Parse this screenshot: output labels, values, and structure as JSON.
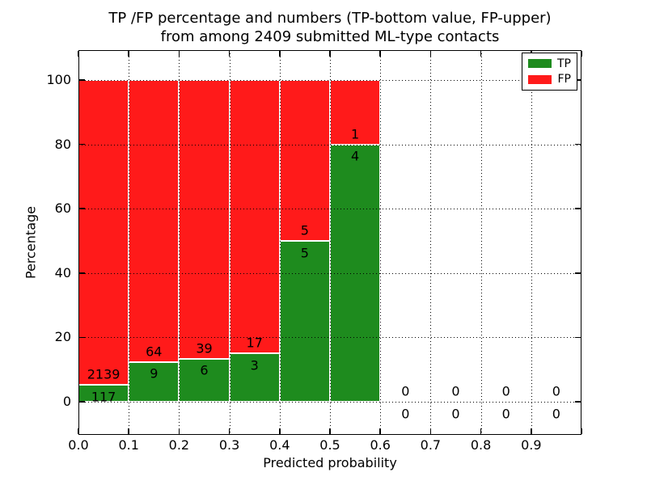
{
  "chart_data": {
    "type": "bar",
    "stacked": true,
    "title_line1": "TP /FP percentage and numbers (TP-bottom value, FP-upper)",
    "title_line2": "from among 2409 submitted ML-type contacts",
    "xlabel": "Predicted probability",
    "ylabel": "Percentage",
    "x_tick_labels": [
      "0.0",
      "0.1",
      "0.2",
      "0.3",
      "0.4",
      "0.5",
      "0.6",
      "0.7",
      "0.8",
      "0.9"
    ],
    "y_ticks": [
      0,
      20,
      40,
      60,
      80,
      100
    ],
    "xlim": [
      0.0,
      1.0
    ],
    "ylim": [
      -10.3,
      109.3
    ],
    "grid": true,
    "bin_width": 0.1,
    "bins": [
      {
        "range": [
          0.0,
          0.1
        ],
        "tp": 117,
        "fp": 2139
      },
      {
        "range": [
          0.1,
          0.2
        ],
        "tp": 9,
        "fp": 64
      },
      {
        "range": [
          0.2,
          0.3
        ],
        "tp": 6,
        "fp": 39
      },
      {
        "range": [
          0.3,
          0.4
        ],
        "tp": 3,
        "fp": 17
      },
      {
        "range": [
          0.4,
          0.5
        ],
        "tp": 5,
        "fp": 5
      },
      {
        "range": [
          0.5,
          0.6
        ],
        "tp": 4,
        "fp": 1
      },
      {
        "range": [
          0.6,
          0.7
        ],
        "tp": 0,
        "fp": 0
      },
      {
        "range": [
          0.7,
          0.8
        ],
        "tp": 0,
        "fp": 0
      },
      {
        "range": [
          0.8,
          0.9
        ],
        "tp": 0,
        "fp": 0
      },
      {
        "range": [
          0.9,
          1.0
        ],
        "tp": 0,
        "fp": 0
      }
    ],
    "legend": [
      {
        "label": "TP",
        "color": "#1e8b1e"
      },
      {
        "label": "FP",
        "color": "#ff1a1a"
      }
    ],
    "legend_position": "upper right",
    "colors": {
      "tp": "#1e8b1e",
      "fp": "#ff1a1a",
      "grid": "#000000",
      "frame": "#000000"
    }
  }
}
